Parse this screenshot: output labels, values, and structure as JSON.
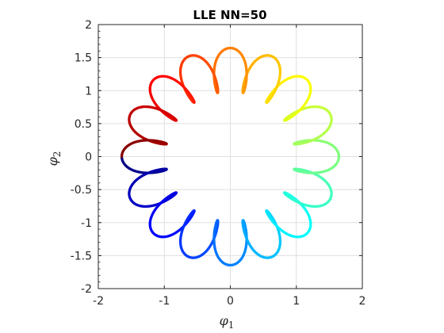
{
  "chart_data": {
    "type": "scatter",
    "title": "LLE NN=50",
    "xlabel": "φ",
    "xlabel_sub": "1",
    "ylabel": "φ",
    "ylabel_sub": "2",
    "xlim": [
      -2,
      2
    ],
    "ylim": [
      -2,
      2
    ],
    "xticks": [
      -2,
      -1,
      0,
      1,
      2
    ],
    "yticks": [
      -2,
      -1.5,
      -1,
      -0.5,
      0,
      0.5,
      1,
      1.5,
      2
    ],
    "xtick_labels": [
      "-2",
      "-1",
      "0",
      "1",
      "2"
    ],
    "ytick_labels": [
      "-2",
      "-1.5",
      "-1",
      "-0.5",
      "0",
      "0.5",
      "1",
      "1.5",
      "2"
    ],
    "grid": true,
    "colormap": "jet",
    "curve": {
      "shape": "wavy ring with 16 outward lobes",
      "base_radius": 1.15,
      "lobe_amplitude": 0.55,
      "lobes": 16,
      "color_start_angle_deg": 180
    }
  }
}
